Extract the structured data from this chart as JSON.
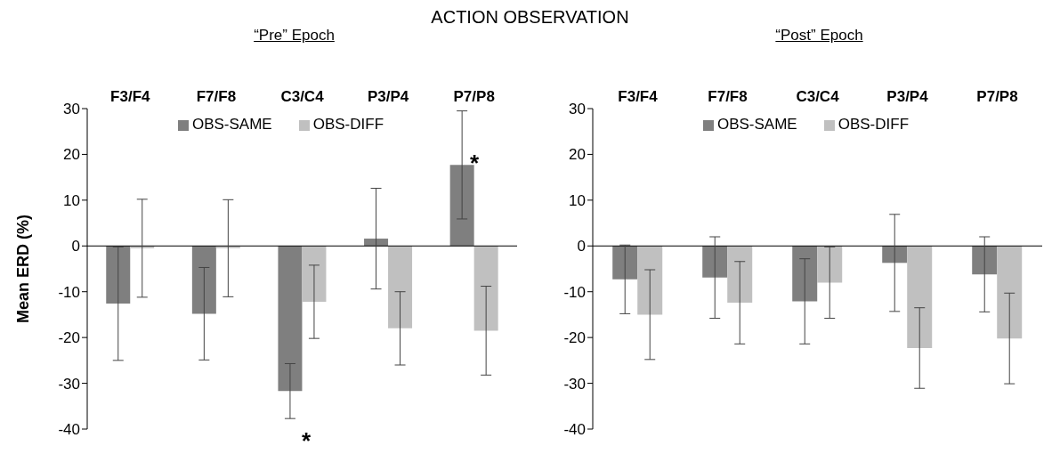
{
  "chart_data": [
    {
      "type": "bar",
      "title": "ACTION OBSERVATION",
      "subtitle": "“Pre” Epoch",
      "ylabel": "Mean ERD (%)",
      "categories": [
        "F3/F4",
        "F7/F8",
        "C3/C4",
        "P3/P4",
        "P7/P8"
      ],
      "series": [
        {
          "name": "OBS-SAME",
          "color": "#7f7f7f",
          "values": [
            -12.6,
            -14.8,
            -31.7,
            1.6,
            17.7
          ],
          "errors": [
            12.4,
            10.1,
            6.0,
            11.0,
            11.8
          ]
        },
        {
          "name": "OBS-DIFF",
          "color": "#c0c0c0",
          "values": [
            -0.5,
            -0.5,
            -12.2,
            -18.0,
            -18.5
          ],
          "errors": [
            10.7,
            10.6,
            8.0,
            8.0,
            9.7
          ]
        }
      ],
      "ylim": [
        -40,
        30
      ],
      "yticks": [
        -40,
        -30,
        -20,
        -10,
        0,
        10,
        20,
        30
      ],
      "legend": "top",
      "annotations": [
        "*",
        "*"
      ]
    },
    {
      "type": "bar",
      "subtitle": "“Post” Epoch",
      "categories": [
        "F3/F4",
        "F7/F8",
        "C3/C4",
        "P3/P4",
        "P7/P8"
      ],
      "series": [
        {
          "name": "OBS-SAME",
          "color": "#7f7f7f",
          "values": [
            -7.3,
            -6.9,
            -12.1,
            -3.7,
            -6.2
          ],
          "errors": [
            7.5,
            8.9,
            9.3,
            10.6,
            8.2
          ]
        },
        {
          "name": "OBS-DIFF",
          "color": "#c0c0c0",
          "values": [
            -15.0,
            -12.4,
            -8.0,
            -22.3,
            -20.2
          ],
          "errors": [
            9.8,
            9.0,
            7.8,
            8.8,
            9.9
          ]
        }
      ],
      "ylim": [
        -40,
        30
      ],
      "yticks": [
        -40,
        -30,
        -20,
        -10,
        0,
        10,
        20,
        30
      ],
      "legend": "top"
    }
  ]
}
